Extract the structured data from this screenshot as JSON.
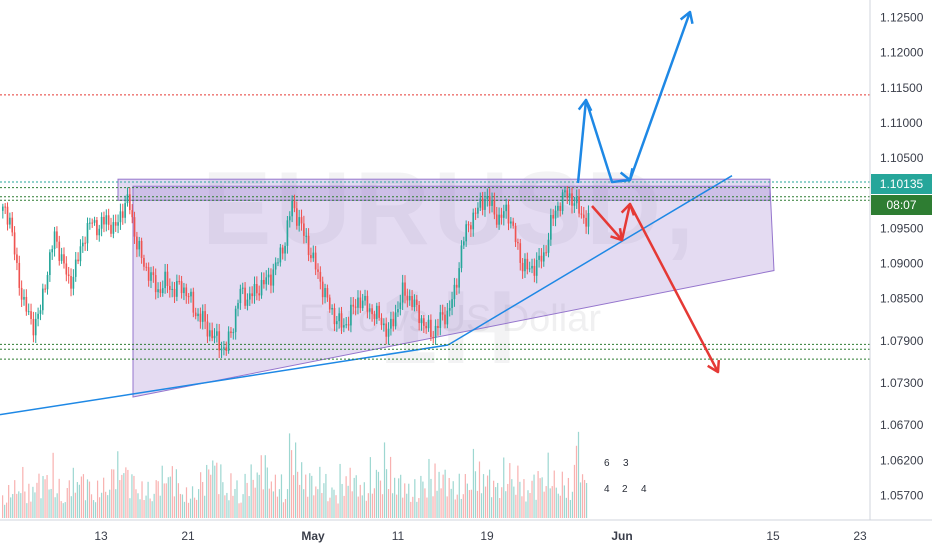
{
  "chart_data": {
    "type": "candlestick",
    "symbol_watermark": "EURUSD, 1H",
    "watermark_subtitle": "Euro vs US Dollar",
    "price_axis": {
      "ticks": [
        "1.12500",
        "1.12000",
        "1.11500",
        "1.11000",
        "1.10500",
        "1.10135",
        "1.09500",
        "1.09000",
        "1.08500",
        "1.07900",
        "1.07300",
        "1.06700",
        "1.06200",
        "1.05700"
      ],
      "ylim": [
        1.0535,
        1.1275
      ]
    },
    "time_axis": {
      "ticks": [
        {
          "label": "13",
          "bold": false
        },
        {
          "label": "21",
          "bold": false
        },
        {
          "label": "May",
          "bold": true
        },
        {
          "label": "11",
          "bold": false
        },
        {
          "label": "19",
          "bold": false
        },
        {
          "label": "Jun",
          "bold": true
        },
        {
          "label": "15",
          "bold": false
        },
        {
          "label": "23",
          "bold": false
        }
      ]
    },
    "current_price": "1.10135",
    "countdown": "08:07",
    "levels": [
      {
        "price": 1.114,
        "style": "dotted",
        "color": "#e53935"
      },
      {
        "price": 1.1016,
        "style": "dotted",
        "color": "#26a69a"
      },
      {
        "price": 1.1008,
        "style": "dotted",
        "color": "#2e7d32"
      },
      {
        "price": 1.0995,
        "style": "dotted",
        "color": "#2e7d32"
      },
      {
        "price": 1.099,
        "style": "dotted",
        "color": "#2e7d32"
      },
      {
        "price": 1.0785,
        "style": "dotted",
        "color": "#2e7d32"
      },
      {
        "price": 1.0778,
        "style": "dotted",
        "color": "#2e7d32"
      },
      {
        "price": 1.0764,
        "style": "dotted",
        "color": "#2e7d32"
      }
    ],
    "candles_sampled": [
      1.0975,
      1.0965,
      1.088,
      1.084,
      1.081,
      1.083,
      1.089,
      1.094,
      1.0905,
      1.087,
      1.09,
      1.094,
      1.096,
      1.095,
      1.0965,
      1.0945,
      1.0975,
      1.099,
      1.093,
      1.09,
      1.088,
      1.086,
      1.0875,
      1.086,
      1.087,
      1.0855,
      1.083,
      1.082,
      1.08,
      1.079,
      1.0775,
      1.081,
      1.086,
      1.085,
      1.086,
      1.087,
      1.088,
      1.09,
      1.093,
      1.0985,
      1.096,
      1.093,
      1.09,
      1.087,
      1.084,
      1.082,
      1.081,
      1.083,
      1.085,
      1.084,
      1.083,
      1.082,
      1.08,
      1.083,
      1.086,
      1.085,
      1.083,
      1.081,
      1.08,
      1.082,
      1.083,
      1.086,
      1.093,
      1.096,
      1.0975,
      1.0995,
      1.098,
      1.096,
      1.098,
      1.094,
      1.09,
      1.089,
      1.09,
      1.091,
      1.096,
      1.0985,
      1.1,
      1.099,
      1.097,
      1.096
    ],
    "volume_sampled": [
      0.3,
      0.4,
      0.5,
      0.35,
      0.45,
      0.5,
      0.6,
      0.4,
      0.3,
      0.5,
      0.55,
      0.45,
      0.35,
      0.4,
      0.5,
      0.65,
      0.7,
      0.5,
      0.45,
      0.35,
      0.4,
      0.5,
      0.6,
      0.55,
      0.4,
      0.3,
      0.45,
      0.5,
      0.8,
      0.6,
      0.4,
      0.45,
      0.35,
      0.5,
      0.6,
      0.7,
      0.55,
      0.45,
      0.4,
      1.0,
      0.7,
      0.5,
      0.45,
      0.55,
      0.4,
      0.35,
      0.5,
      0.6,
      0.45,
      0.4,
      0.55,
      0.6,
      0.7,
      0.5,
      0.45,
      0.4,
      0.35,
      0.5,
      0.55,
      0.6,
      0.5,
      0.45,
      0.4,
      0.5,
      0.65,
      0.6,
      0.5,
      0.45,
      0.55,
      0.6,
      0.5,
      0.4,
      0.45,
      0.55,
      0.6,
      0.5,
      0.45,
      0.4,
      0.9,
      0.5
    ],
    "pattern_polygon_prices": [
      [
        1.101,
        1.101
      ],
      [
        1.071,
        1.089
      ]
    ],
    "drawings": {
      "purple_zone": {
        "color": "#9575cd"
      },
      "trend_line": {
        "color": "#1e88e5"
      },
      "bull_path_color": "#1e88e5",
      "bear_path_color": "#e53935"
    },
    "event_icons": {
      "row1": [
        "6",
        "3"
      ],
      "row2": [
        "4",
        "2",
        "4"
      ]
    },
    "colors": {
      "up": "#26a69a",
      "down": "#ef5350",
      "tag_price": "#26a69a",
      "tag_countdown": "#2e7d32"
    }
  }
}
